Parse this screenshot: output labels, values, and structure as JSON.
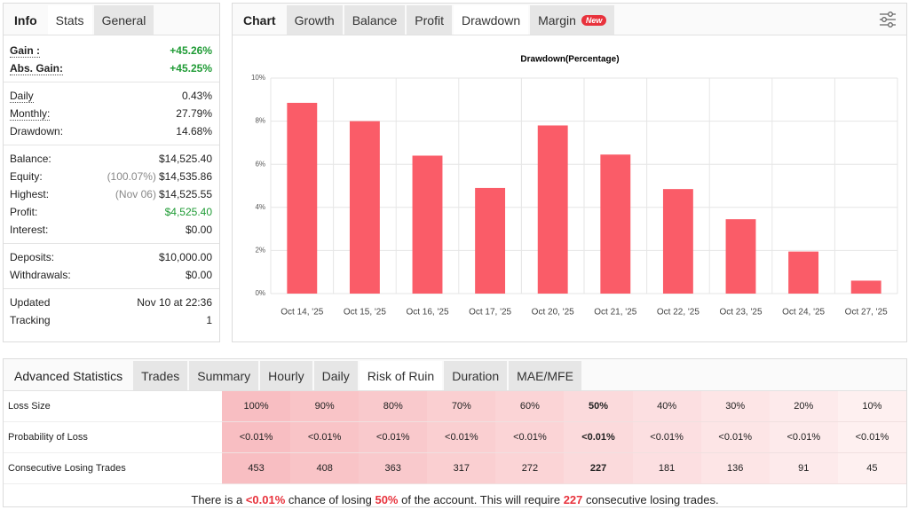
{
  "stats_panel": {
    "label": "Info",
    "tabs": [
      "Stats",
      "General"
    ],
    "active_tab": 0,
    "groups": [
      [
        {
          "label": "Gain :",
          "value": "+45.26%",
          "green": true,
          "dotted": true
        },
        {
          "label": "Abs. Gain:",
          "value": "+45.25%",
          "green": true,
          "dotted": true
        }
      ],
      [
        {
          "label": "Daily",
          "value": "0.43%",
          "dotted": true
        },
        {
          "label": "Monthly:",
          "value": "27.79%",
          "dotted": true
        },
        {
          "label": "Drawdown:",
          "value": "14.68%"
        }
      ],
      [
        {
          "label": "Balance:",
          "value": "$14,525.40"
        },
        {
          "label": "Equity:",
          "note": "(100.07%)",
          "value": "$14,535.86"
        },
        {
          "label": "Highest:",
          "note": "(Nov 06)",
          "value": "$14,525.55"
        },
        {
          "label": "Profit:",
          "value": "$4,525.40",
          "green": true
        },
        {
          "label": "Interest:",
          "value": "$0.00"
        }
      ],
      [
        {
          "label": "Deposits:",
          "value": "$10,000.00"
        },
        {
          "label": "Withdrawals:",
          "value": "$0.00"
        }
      ],
      [
        {
          "label": "Updated",
          "value": "Nov 10 at 22:36"
        },
        {
          "label": "Tracking",
          "value": "1"
        }
      ]
    ]
  },
  "chart_panel": {
    "label": "Chart",
    "tabs": [
      "Growth",
      "Balance",
      "Profit",
      "Drawdown",
      "Margin"
    ],
    "active_tab": 3,
    "badge": "New"
  },
  "chart_data": {
    "type": "bar",
    "title": "Drawdown(Percentage)",
    "categories": [
      "Oct 14, '25",
      "Oct 15, '25",
      "Oct 16, '25",
      "Oct 17, '25",
      "Oct 20, '25",
      "Oct 21, '25",
      "Oct 22, '25",
      "Oct 23, '25",
      "Oct 24, '25",
      "Oct 27, '25"
    ],
    "values": [
      8.85,
      8.0,
      6.4,
      4.9,
      7.8,
      6.45,
      4.85,
      3.45,
      1.95,
      0.6
    ],
    "color": "#fa5c68",
    "ylim": [
      0,
      10
    ],
    "yticks": [
      {
        "value": 0,
        "label": "0%"
      },
      {
        "value": 2,
        "label": "2%"
      },
      {
        "value": 4,
        "label": "4%"
      },
      {
        "value": 6,
        "label": "6%"
      },
      {
        "value": 8,
        "label": "8%"
      },
      {
        "value": 10,
        "label": "10%"
      }
    ],
    "grid": true
  },
  "advanced_panel": {
    "label": "Advanced Statistics",
    "tabs": [
      "Trades",
      "Summary",
      "Hourly",
      "Daily",
      "Risk of Ruin",
      "Duration",
      "MAE/MFE"
    ],
    "active_tab": 4,
    "table": {
      "highlight_column": 5,
      "rows": [
        {
          "label": "Loss Size",
          "cells": [
            "100%",
            "90%",
            "80%",
            "70%",
            "60%",
            "50%",
            "40%",
            "30%",
            "20%",
            "10%"
          ]
        },
        {
          "label": "Probability of Loss",
          "cells": [
            "<0.01%",
            "<0.01%",
            "<0.01%",
            "<0.01%",
            "<0.01%",
            "<0.01%",
            "<0.01%",
            "<0.01%",
            "<0.01%",
            "<0.01%"
          ]
        },
        {
          "label": "Consecutive Losing Trades",
          "cells": [
            "453",
            "408",
            "363",
            "317",
            "272",
            "227",
            "181",
            "136",
            "91",
            "45"
          ]
        }
      ]
    },
    "sentence": [
      {
        "text": "There is a "
      },
      {
        "text": "<0.01%",
        "emph": true
      },
      {
        "text": " chance of losing "
      },
      {
        "text": "50%",
        "emph": true
      },
      {
        "text": " of the account. This will require "
      },
      {
        "text": "227",
        "emph": true
      },
      {
        "text": " consecutive losing trades."
      }
    ]
  }
}
